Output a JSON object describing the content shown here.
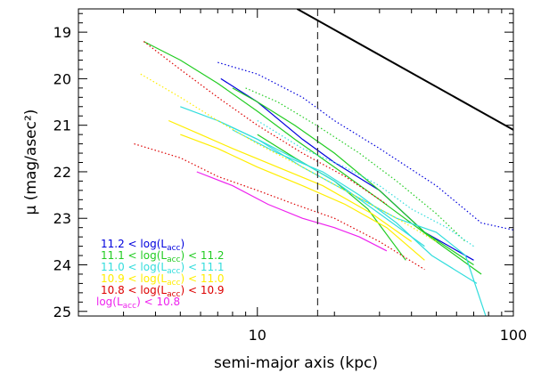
{
  "chart_data": {
    "type": "line",
    "title": "",
    "xlabel": "semi-major axis (kpc)",
    "ylabel": "μ (mag/asec²)",
    "xscale": "log",
    "xlim": [
      2,
      100
    ],
    "ylim": [
      25.1,
      18.5
    ],
    "y_axis_inverted": true,
    "xticks_major": [
      10,
      100
    ],
    "xtick_labels": [
      "10",
      "100"
    ],
    "yticks_major": [
      19,
      20,
      21,
      22,
      23,
      24,
      25
    ],
    "ytick_labels": [
      "19",
      "20",
      "21",
      "22",
      "23",
      "24",
      "25"
    ],
    "grid": false,
    "legend_position": "bottom-left",
    "vertical_reference_line": {
      "x": 17.2,
      "style": "dashed",
      "color": "#333333"
    },
    "reference_line": {
      "style": "solid",
      "color": "#000000",
      "x": [
        14.3,
        100
      ],
      "y": [
        18.5,
        21.1
      ]
    },
    "legend": [
      {
        "text": "11.2 < log(L",
        "sub": "acc",
        "tail": ")",
        "color": "#0000dd"
      },
      {
        "text": "11.1 < log(L",
        "sub": "acc",
        "tail": ") < 11.2",
        "color": "#22cc22"
      },
      {
        "text": "11.0 < log(L",
        "sub": "acc",
        "tail": ") < 11.1",
        "color": "#33dddd"
      },
      {
        "text": "10.9 < log(L",
        "sub": "acc",
        "tail": ") < 11.0",
        "color": "#ffee00"
      },
      {
        "text": "10.8 < log(L",
        "sub": "acc",
        "tail": ") < 10.9",
        "color": "#dd0000"
      },
      {
        "text": "log(L",
        "sub": "acc",
        "tail": ") < 10.8",
        "color": "#ee22ee"
      }
    ],
    "series": [
      {
        "color": "#0000dd",
        "dash": "solid",
        "x": [
          7.2,
          10,
          15,
          20,
          30,
          45,
          70
        ],
        "y": [
          20.0,
          20.5,
          21.3,
          21.8,
          22.4,
          23.3,
          23.9
        ]
      },
      {
        "color": "#0000dd",
        "dash": "dotted",
        "x": [
          7.0,
          10,
          15,
          20,
          30,
          50,
          75,
          100
        ],
        "y": [
          19.65,
          19.9,
          20.4,
          20.9,
          21.5,
          22.3,
          23.1,
          23.25
        ]
      },
      {
        "color": "#22cc22",
        "dash": "solid",
        "x": [
          3.6,
          5,
          7,
          10,
          14,
          20,
          30,
          50,
          75
        ],
        "y": [
          19.2,
          19.6,
          20.1,
          20.7,
          21.3,
          21.9,
          22.6,
          23.5,
          24.2
        ]
      },
      {
        "color": "#22cc22",
        "dash": "solid",
        "x": [
          8,
          10,
          14,
          20,
          30,
          45,
          70
        ],
        "y": [
          20.2,
          20.5,
          21.0,
          21.6,
          22.4,
          23.3,
          24.0
        ]
      },
      {
        "color": "#22cc22",
        "dash": "solid",
        "x": [
          10,
          14,
          20,
          27,
          38
        ],
        "y": [
          21.2,
          21.7,
          22.2,
          22.8,
          23.9
        ]
      },
      {
        "color": "#22cc22",
        "dash": "dotted",
        "x": [
          9,
          12,
          17,
          25,
          35,
          50,
          65
        ],
        "y": [
          20.2,
          20.5,
          21.0,
          21.6,
          22.2,
          22.9,
          23.5
        ]
      },
      {
        "color": "#33dddd",
        "dash": "solid",
        "x": [
          5,
          7,
          10,
          15,
          22,
          35,
          50,
          65,
          78
        ],
        "y": [
          20.6,
          20.9,
          21.3,
          21.9,
          22.4,
          23.0,
          23.3,
          23.8,
          25.1
        ]
      },
      {
        "color": "#33dddd",
        "dash": "solid",
        "x": [
          7,
          10,
          15,
          20,
          30,
          45
        ],
        "y": [
          20.9,
          21.3,
          21.8,
          22.2,
          22.9,
          23.6
        ]
      },
      {
        "color": "#33dddd",
        "dash": "solid",
        "x": [
          8,
          12,
          18,
          25,
          35,
          48,
          72
        ],
        "y": [
          21.1,
          21.6,
          22.0,
          22.5,
          23.1,
          23.8,
          24.4
        ]
      },
      {
        "color": "#33dddd",
        "dash": "dotted",
        "x": [
          10,
          15,
          22,
          30,
          40,
          55,
          70
        ],
        "y": [
          20.9,
          21.5,
          21.9,
          22.3,
          22.8,
          23.2,
          23.6
        ]
      },
      {
        "color": "#ffee00",
        "dash": "solid",
        "x": [
          4.5,
          6,
          8,
          12,
          18,
          28,
          40
        ],
        "y": [
          20.9,
          21.2,
          21.5,
          21.9,
          22.3,
          22.9,
          23.5
        ]
      },
      {
        "color": "#ffee00",
        "dash": "solid",
        "x": [
          5,
          7,
          10,
          15,
          22,
          32,
          45
        ],
        "y": [
          21.2,
          21.5,
          21.9,
          22.3,
          22.7,
          23.2,
          23.9
        ]
      },
      {
        "color": "#ffee00",
        "dash": "dotted",
        "x": [
          3.5,
          5,
          7,
          10,
          15,
          22,
          35,
          50
        ],
        "y": [
          19.9,
          20.4,
          20.9,
          21.4,
          21.9,
          22.4,
          23.0,
          23.5
        ]
      },
      {
        "color": "#dd0000",
        "dash": "dotted",
        "x": [
          3.3,
          5,
          7,
          10,
          14,
          20,
          30,
          45
        ],
        "y": [
          21.4,
          21.7,
          22.1,
          22.4,
          22.7,
          23.0,
          23.5,
          24.1
        ]
      },
      {
        "color": "#dd0000",
        "dash": "dotted",
        "x": [
          3.6,
          5,
          7,
          10,
          15,
          22,
          32
        ],
        "y": [
          19.2,
          19.8,
          20.4,
          21.0,
          21.6,
          22.1,
          22.7
        ]
      },
      {
        "color": "#ee22ee",
        "dash": "solid",
        "x": [
          5.8,
          8,
          11,
          15,
          20,
          25,
          32
        ],
        "y": [
          22.0,
          22.3,
          22.7,
          23.0,
          23.2,
          23.4,
          23.7
        ]
      }
    ]
  }
}
